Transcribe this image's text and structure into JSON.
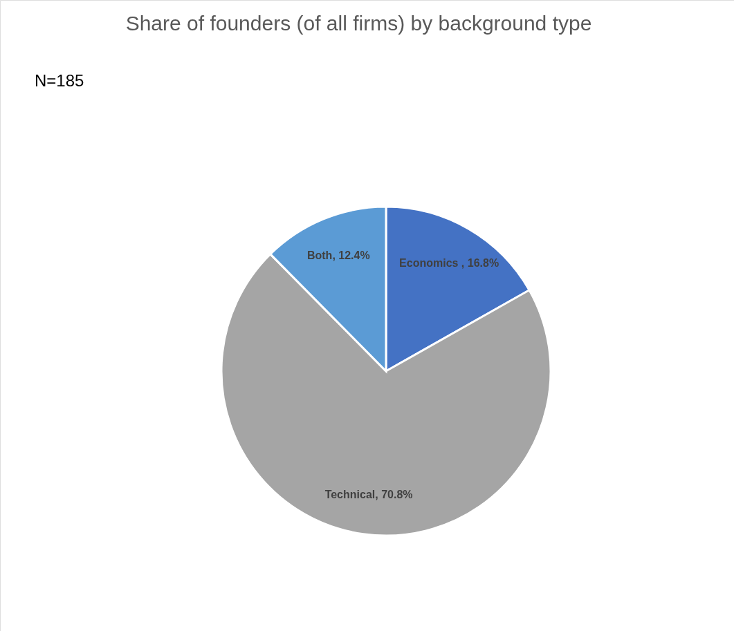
{
  "chart_data": {
    "type": "pie",
    "title": "Share of founders (of all firms) by background type",
    "annotations": [
      "N=185"
    ],
    "categories": [
      "Economics ",
      "Technical",
      "Both"
    ],
    "values": [
      16.8,
      70.8,
      12.4
    ],
    "colors": [
      "#4472c4",
      "#a5a5a5",
      "#5b9bd5"
    ],
    "value_labels": [
      "16.8%",
      "70.8%",
      "12.4%"
    ],
    "legend": false
  }
}
